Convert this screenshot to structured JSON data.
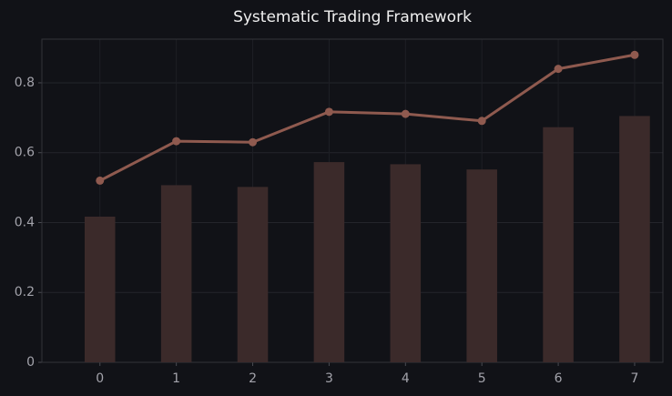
{
  "chart_data": {
    "type": "bar",
    "title": "Systematic Trading Framework",
    "x": [
      0,
      1,
      2,
      3,
      4,
      5,
      6,
      7
    ],
    "series": [
      {
        "type": "bar",
        "color": "#3b2a2a",
        "values": [
          0.417,
          0.507,
          0.502,
          0.573,
          0.567,
          0.552,
          0.673,
          0.705
        ]
      },
      {
        "type": "line",
        "color": "#8f5a4f",
        "values": [
          0.52,
          0.633,
          0.63,
          0.717,
          0.711,
          0.691,
          0.84,
          0.88
        ]
      }
    ],
    "xlim": [
      -0.76,
      7.37
    ],
    "xticks": [
      0,
      1,
      2,
      3,
      4,
      5,
      6,
      7
    ],
    "ylim": [
      0,
      0.925
    ],
    "yticks": [
      0.0,
      0.2,
      0.4,
      0.6,
      0.8
    ],
    "grid": true
  }
}
